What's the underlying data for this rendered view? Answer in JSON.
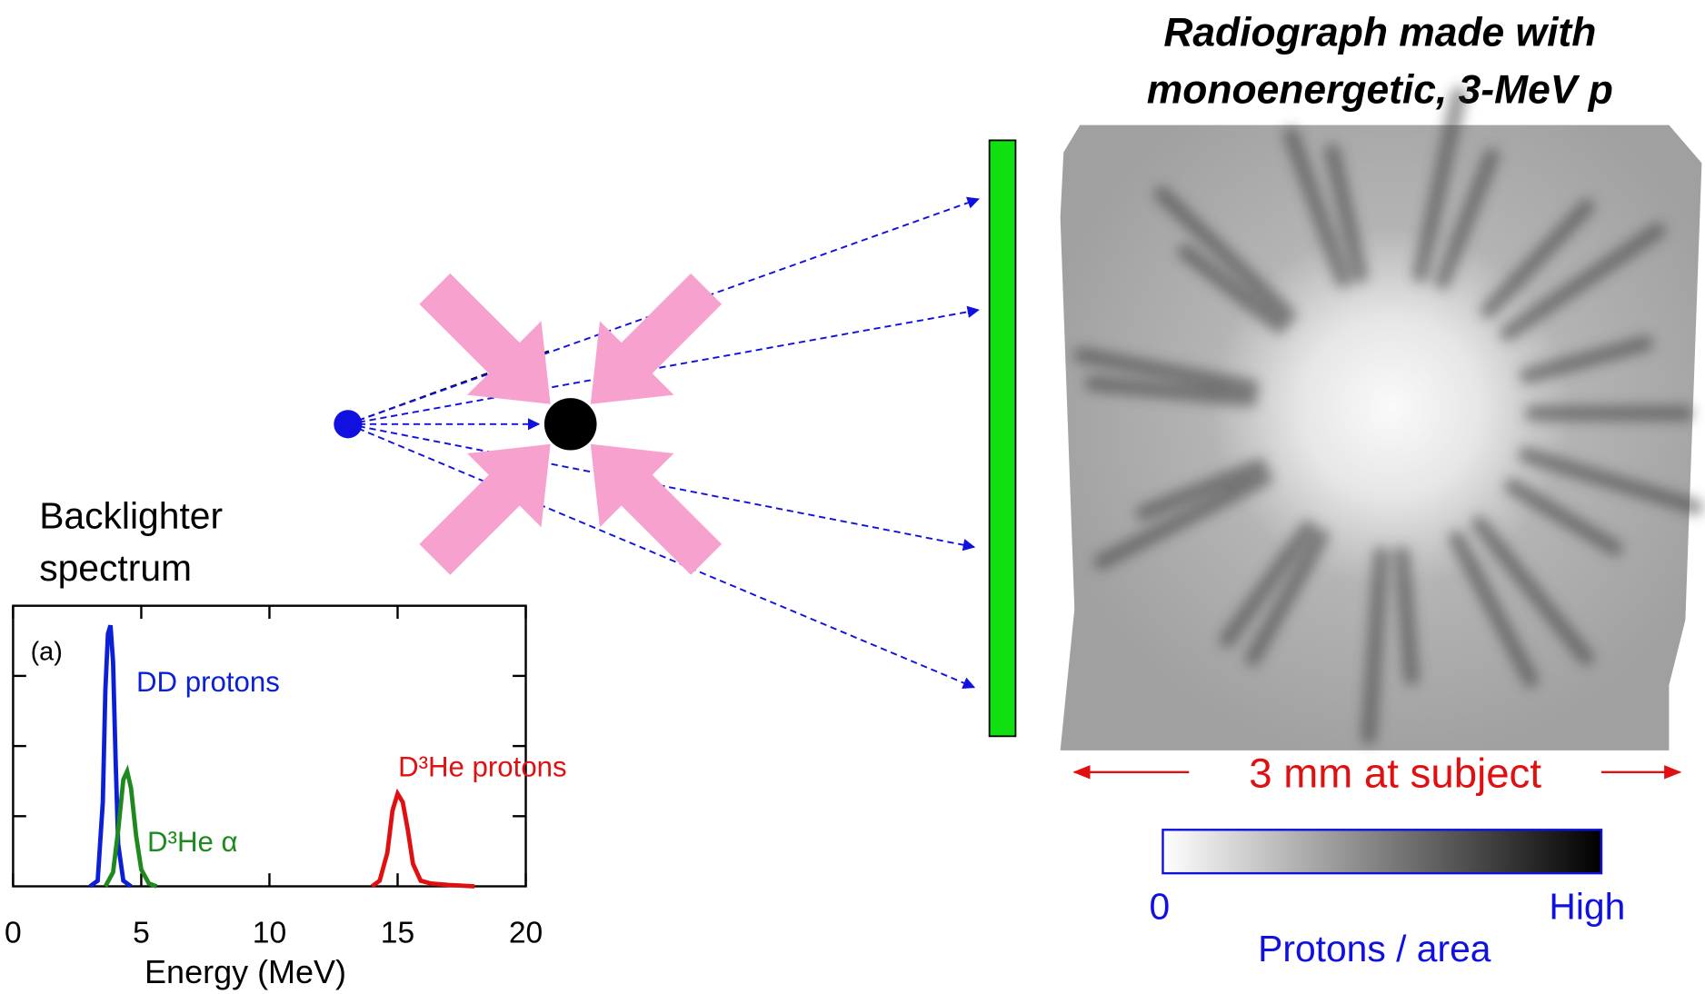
{
  "title_lines": [
    "Radiograph made with",
    "monoenergetic, 3-MeV p"
  ],
  "spectrum_heading": [
    "Backlighter",
    "spectrum"
  ],
  "scale_label": "3 mm at subject",
  "colorbar": {
    "min_label": "0",
    "max_label": "High",
    "title": "Protons / area"
  },
  "chart_data": {
    "type": "line",
    "panel_label": "(a)",
    "xlabel": "Energy (MeV)",
    "xlim": [
      0,
      20
    ],
    "xticks": [
      0,
      5,
      10,
      15,
      20
    ],
    "ylim": [
      0,
      1
    ],
    "series": [
      {
        "name": "DD protons",
        "color": "#0a1fd6",
        "x": [
          3.0,
          3.3,
          3.5,
          3.6,
          3.7,
          3.8,
          3.9,
          4.0,
          4.1,
          4.3,
          4.6
        ],
        "values": [
          0,
          0.02,
          0.3,
          0.7,
          0.9,
          0.93,
          0.8,
          0.45,
          0.15,
          0.02,
          0
        ]
      },
      {
        "name": "D³He α",
        "color": "#1e8a1e",
        "x": [
          3.6,
          3.9,
          4.1,
          4.3,
          4.45,
          4.6,
          4.8,
          5.0,
          5.3,
          5.6
        ],
        "values": [
          0,
          0.05,
          0.2,
          0.38,
          0.41,
          0.35,
          0.18,
          0.06,
          0.01,
          0
        ]
      },
      {
        "name": "D³He protons",
        "color": "#e01010",
        "x": [
          14.0,
          14.3,
          14.6,
          14.8,
          15.0,
          15.2,
          15.4,
          15.6,
          15.9,
          16.3,
          17.0,
          18.0
        ],
        "values": [
          0,
          0.02,
          0.12,
          0.27,
          0.33,
          0.3,
          0.2,
          0.08,
          0.02,
          0.01,
          0.005,
          0
        ]
      }
    ]
  }
}
